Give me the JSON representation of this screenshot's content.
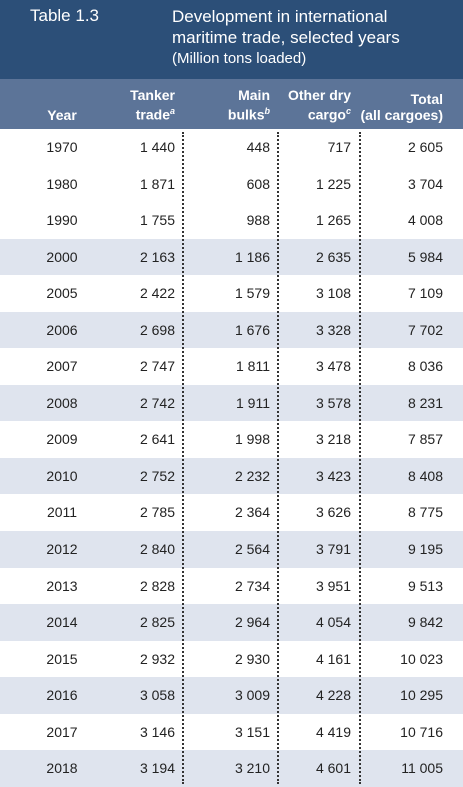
{
  "header": {
    "label": "Table 1.3",
    "title": "Development in international maritime trade, selected years",
    "subtitle": "(Million tons loaded)"
  },
  "table": {
    "columns": [
      {
        "lines": [
          "Year"
        ]
      },
      {
        "lines": [
          "Tanker",
          "trade"
        ],
        "note": "a"
      },
      {
        "lines": [
          "Main",
          "bulks"
        ],
        "note": "b"
      },
      {
        "lines": [
          "Other dry",
          "cargo"
        ],
        "note": "c"
      },
      {
        "lines": [
          "Total",
          "(all cargoes)"
        ]
      }
    ],
    "rows": [
      [
        "1970",
        "1 440",
        "448",
        "717",
        "2 605"
      ],
      [
        "1980",
        "1 871",
        "608",
        "1 225",
        "3 704"
      ],
      [
        "1990",
        "1 755",
        "988",
        "1 265",
        "4 008"
      ],
      [
        "2000",
        "2 163",
        "1 186",
        "2 635",
        "5 984"
      ],
      [
        "2005",
        "2 422",
        "1 579",
        "3 108",
        "7 109"
      ],
      [
        "2006",
        "2 698",
        "1 676",
        "3 328",
        "7 702"
      ],
      [
        "2007",
        "2 747",
        "1 811",
        "3 478",
        "8 036"
      ],
      [
        "2008",
        "2 742",
        "1 911",
        "3 578",
        "8 231"
      ],
      [
        "2009",
        "2 641",
        "1 998",
        "3 218",
        "7 857"
      ],
      [
        "2010",
        "2 752",
        "2 232",
        "3 423",
        "8 408"
      ],
      [
        "2011",
        "2 785",
        "2 364",
        "3 626",
        "8 775"
      ],
      [
        "2012",
        "2 840",
        "2 564",
        "3 791",
        "9 195"
      ],
      [
        "2013",
        "2 828",
        "2 734",
        "3 951",
        "9 513"
      ],
      [
        "2014",
        "2 825",
        "2 964",
        "4 054",
        "9 842"
      ],
      [
        "2015",
        "2 932",
        "2 930",
        "4 161",
        "10 023"
      ],
      [
        "2016",
        "3 058",
        "3 009",
        "4 228",
        "10 295"
      ],
      [
        "2017",
        "3 146",
        "3 151",
        "4 419",
        "10 716"
      ],
      [
        "2018",
        "3 194",
        "3 210",
        "4 601",
        "11 005"
      ]
    ]
  }
}
